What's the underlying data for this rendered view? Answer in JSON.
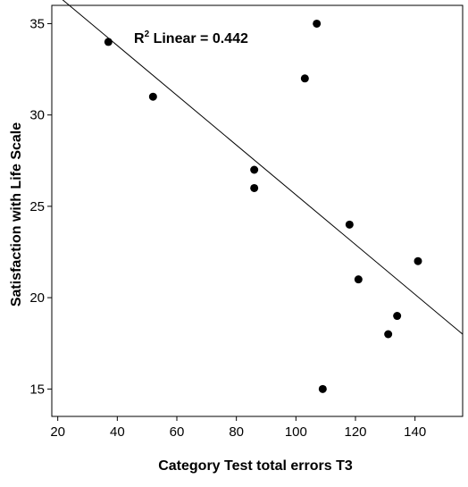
{
  "chart_data": {
    "type": "scatter",
    "xlabel": "Category Test total errors  T3",
    "ylabel": "Satisfaction with Life Scale",
    "xlim": [
      18,
      156
    ],
    "ylim": [
      13.5,
      36
    ],
    "x_ticks": [
      20,
      40,
      60,
      80,
      100,
      120,
      140
    ],
    "y_ticks": [
      15,
      20,
      25,
      30,
      35
    ],
    "x_tick_labels": [
      "20",
      "40",
      "60",
      "80",
      "100",
      "120",
      "140"
    ],
    "y_tick_labels": [
      "15",
      "20",
      "25",
      "30",
      "35"
    ],
    "points": [
      {
        "x": 37,
        "y": 34
      },
      {
        "x": 52,
        "y": 31
      },
      {
        "x": 86,
        "y": 27
      },
      {
        "x": 86,
        "y": 26
      },
      {
        "x": 103,
        "y": 32
      },
      {
        "x": 107,
        "y": 35
      },
      {
        "x": 109,
        "y": 15
      },
      {
        "x": 118,
        "y": 24
      },
      {
        "x": 121,
        "y": 21
      },
      {
        "x": 131,
        "y": 18
      },
      {
        "x": 134,
        "y": 19
      },
      {
        "x": 141,
        "y": 22
      }
    ],
    "fit_line": {
      "type": "linear",
      "x": [
        18,
        156
      ],
      "y": [
        36.8,
        18.0
      ]
    },
    "annotation": {
      "r_prefix": "R",
      "r_superscript": "2",
      "text": " Linear = 0.442"
    },
    "grid": false,
    "legend": "none"
  }
}
